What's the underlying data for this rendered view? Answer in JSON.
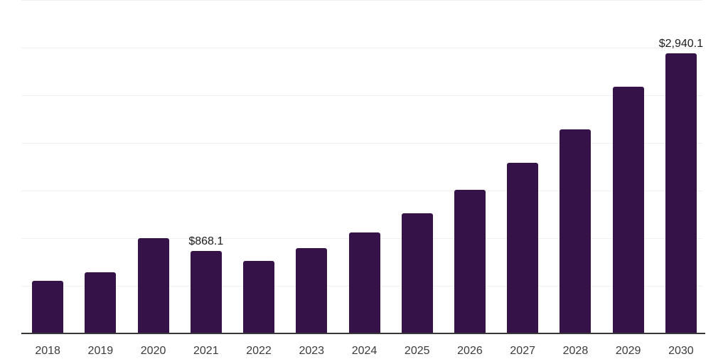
{
  "chart_data": {
    "type": "bar",
    "title": "",
    "xlabel": "",
    "ylabel": "",
    "categories": [
      "2018",
      "2019",
      "2020",
      "2021",
      "2022",
      "2023",
      "2024",
      "2025",
      "2026",
      "2027",
      "2028",
      "2029",
      "2030"
    ],
    "values": [
      552,
      644,
      1000,
      868.1,
      761,
      896,
      1060,
      1261,
      1508,
      1791,
      2142,
      2590,
      2940.1
    ],
    "data_labels": [
      "",
      "",
      "",
      "$868.1",
      "",
      "",
      "",
      "",
      "",
      "",
      "",
      "",
      "$2,940.1"
    ],
    "ylim": [
      0,
      3500
    ],
    "gridline_step": 500,
    "grid": "horizontal-only",
    "legend": "none",
    "y_axis_labels_visible": false,
    "colors": {
      "bar": "#351349",
      "axis": "#38383c",
      "gridline": "#f0f0f2",
      "tick_label": "#3b3b3b",
      "data_label": "#1a1a1a",
      "background": "#ffffff"
    }
  }
}
